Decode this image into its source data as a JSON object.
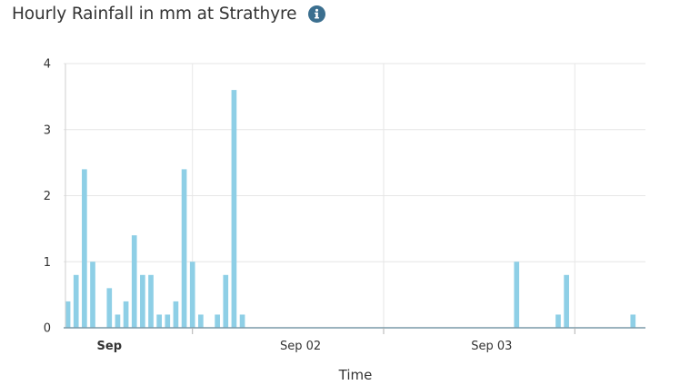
{
  "title": "Hourly Rainfall in mm at Strathyre",
  "info_icon": "info-icon",
  "colors": {
    "bar": "#8ecfe6",
    "grid": "#e6e6e6",
    "axis": "#ccd6eb",
    "baseline": "#7a9aa8",
    "icon": "#3b6f8f"
  },
  "chart_data": {
    "type": "bar",
    "xlabel": "Time",
    "ylabel": "",
    "ylim": [
      0,
      4
    ],
    "yticks": [
      "0",
      "1",
      "2",
      "3",
      "4"
    ],
    "xticks": [
      {
        "label": "Sep",
        "bold": true,
        "at": 5
      },
      {
        "label": "Sep 02",
        "bold": false,
        "at": 28
      },
      {
        "label": "Sep 03",
        "bold": false,
        "at": 51
      }
    ],
    "xgridlines_at": [
      15,
      38,
      61
    ],
    "xlim": [
      -0.5,
      69.5
    ],
    "values": [
      0.4,
      0.8,
      2.4,
      1.0,
      0.0,
      0.6,
      0.2,
      0.4,
      1.4,
      0.8,
      0.8,
      0.2,
      0.2,
      0.4,
      2.4,
      1.0,
      0.2,
      0.0,
      0.2,
      0.8,
      3.6,
      0.2,
      0,
      0,
      0,
      0,
      0,
      0,
      0,
      0,
      0,
      0,
      0,
      0,
      0,
      0,
      0,
      0,
      0,
      0,
      0,
      0,
      0,
      0,
      0,
      0,
      0,
      0,
      0,
      0,
      0,
      0,
      0,
      0,
      1.0,
      0,
      0,
      0,
      0,
      0.2,
      0.8,
      0,
      0,
      0,
      0,
      0,
      0,
      0,
      0.2,
      0
    ],
    "grid": true,
    "legend": "none"
  }
}
